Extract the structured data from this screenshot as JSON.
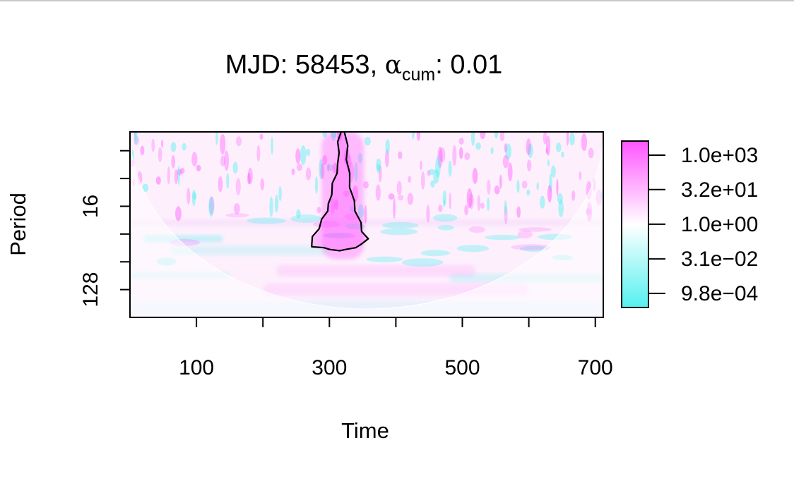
{
  "chart_data": {
    "type": "heatmap",
    "title": {
      "prefix": "MJD: 58453, ",
      "symbol": "α",
      "subscript": "cum",
      "suffix": ": 0.01"
    },
    "xlabel": "Time",
    "ylabel": "Period",
    "x_range": [
      0,
      712
    ],
    "x_ticks": [
      100,
      200,
      300,
      400,
      500,
      600,
      700
    ],
    "x_tick_labels": [
      "100",
      "",
      "300",
      "",
      "500",
      "",
      "700"
    ],
    "y_scale": "log2",
    "y_range": [
      2.5,
      256
    ],
    "y_ticks": [
      4,
      8,
      16,
      32,
      64,
      128
    ],
    "y_tick_labels": [
      "",
      "",
      "16",
      "",
      "",
      "128"
    ],
    "colorbar": {
      "scale": "log",
      "range": [
        0.00024,
        4096
      ],
      "ticks": [
        1000,
        32,
        1,
        0.031,
        0.00098
      ],
      "tick_labels": [
        "1.0e+03",
        "3.2e+01",
        "1.0e+00",
        "3.1e−02",
        "9.8e−04"
      ],
      "low_color": "#55f0f0",
      "mid_color": "#ffffff",
      "high_color": "#ff55ff"
    },
    "significance_contour": {
      "alpha_cum": 0.01,
      "time_center": 320,
      "period_range": [
        2.5,
        64
      ]
    },
    "cone_of_influence": true
  }
}
